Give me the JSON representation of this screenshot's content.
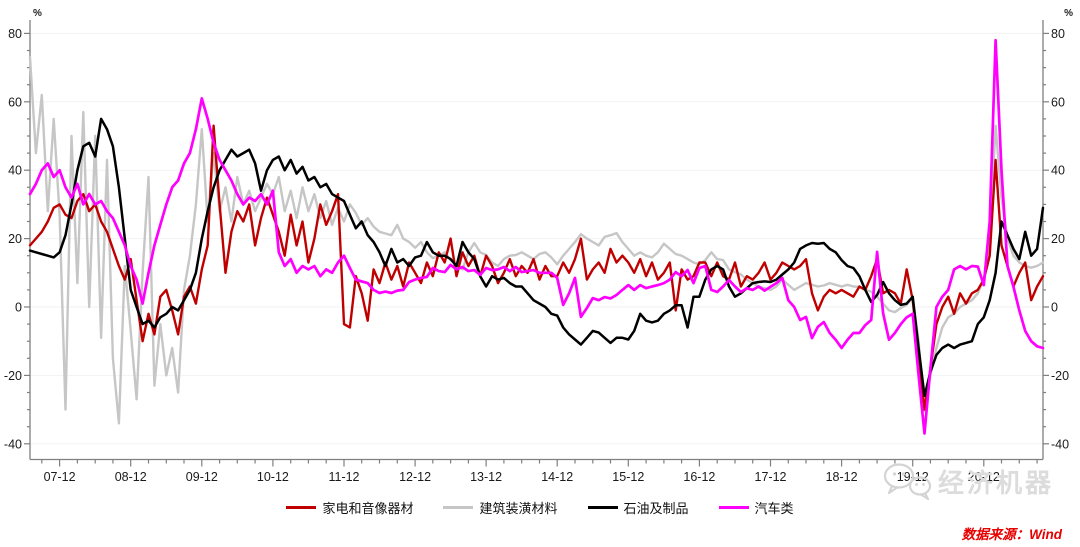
{
  "header": {
    "y_unit_left": "%",
    "y_unit_right": "%"
  },
  "chart_data": {
    "type": "line",
    "x_start": "2007-07",
    "x_end": "2021-10",
    "x_frequency": "monthly",
    "x_tick_labels": [
      "07-12",
      "08-12",
      "09-12",
      "10-12",
      "11-12",
      "12-12",
      "13-12",
      "14-12",
      "15-12",
      "16-12",
      "17-12",
      "18-12",
      "19-12",
      "20-12"
    ],
    "x_tick_indices": [
      5,
      17,
      29,
      41,
      53,
      65,
      77,
      89,
      101,
      113,
      125,
      137,
      149,
      161
    ],
    "ylim": [
      -40,
      80
    ],
    "y_ticks": [
      -40,
      -20,
      0,
      20,
      40,
      60,
      80
    ],
    "y_minor_step": 5,
    "grid": "faint-horizontal",
    "legend_position": "bottom-center",
    "series": [
      {
        "id": "appliances",
        "name": "家电和音像器材",
        "color": "#C00000",
        "width": 2.4,
        "values": [
          18,
          20,
          22,
          25,
          29,
          30,
          27,
          26,
          31,
          33,
          28,
          30,
          25,
          22,
          17,
          12,
          8,
          14,
          2,
          -10,
          -2,
          -8,
          3,
          5,
          -1,
          -8,
          3,
          6,
          1,
          11,
          18,
          53,
          30,
          10,
          22,
          28,
          25,
          30,
          18,
          26,
          32,
          27,
          22,
          15,
          27,
          18,
          25,
          13,
          20,
          30,
          24,
          28,
          33,
          -5,
          -6,
          9,
          4,
          -4,
          11,
          7,
          13,
          8,
          12,
          6,
          13,
          10,
          7,
          13,
          9,
          16,
          13,
          20,
          9,
          16,
          12,
          15,
          9,
          15,
          12,
          7,
          10,
          14,
          9,
          12,
          10,
          14,
          8,
          12,
          9,
          9,
          13,
          10,
          14,
          20,
          8,
          11,
          13,
          10,
          17,
          13,
          15,
          13,
          10,
          14,
          9,
          13,
          8,
          10,
          13,
          -1,
          11,
          8,
          9,
          13,
          13,
          9,
          13,
          9,
          8,
          13,
          6,
          9,
          8,
          10,
          13,
          8,
          10,
          13,
          12,
          11,
          12,
          14,
          4,
          -1,
          3,
          5,
          4,
          5,
          4,
          3,
          6,
          5,
          9,
          14,
          4,
          5,
          4,
          1,
          11,
          2,
          -14,
          -30,
          -18,
          -5,
          0,
          3,
          -2,
          4,
          1,
          4,
          5,
          8,
          15,
          43,
          18,
          12,
          6,
          10,
          13,
          2,
          6,
          9
        ]
      },
      {
        "id": "building-materials",
        "name": "建筑装潢材料",
        "color": "#C6C6C6",
        "width": 2.4,
        "values": [
          73,
          45,
          62,
          28,
          55,
          27,
          -30,
          50,
          7,
          57,
          0,
          50,
          -9,
          43,
          -15,
          -34,
          12,
          -7,
          -27,
          10,
          38,
          -23,
          -5,
          -20,
          -12,
          -25,
          5,
          15,
          30,
          52,
          25,
          45,
          28,
          35,
          25,
          38,
          30,
          34,
          28,
          32,
          36,
          33,
          38,
          28,
          34,
          26,
          35,
          28,
          33,
          26,
          31,
          24,
          29,
          25,
          30,
          27.5,
          24,
          26,
          23.5,
          22,
          21.5,
          21,
          24,
          20,
          19,
          17.3,
          19,
          16,
          14.3,
          15,
          16,
          13.7,
          12.3,
          11,
          16,
          18.7,
          16,
          15.2,
          13,
          12,
          14,
          15,
          15.2,
          16,
          15,
          14,
          15.5,
          16,
          14.5,
          12.5,
          15,
          17,
          19,
          21.3,
          20,
          19,
          18,
          20.5,
          21,
          21.6,
          19,
          17,
          15,
          16,
          15,
          14.5,
          16,
          18.5,
          17,
          15.5,
          15,
          14,
          13,
          12.5,
          13.7,
          16,
          14,
          13.7,
          11,
          10.2,
          9.5,
          8,
          7,
          6,
          5.5,
          5,
          6,
          8,
          6.5,
          5,
          6,
          7,
          6.5,
          6,
          6.3,
          7,
          6.5,
          6,
          6.5,
          6,
          5.9,
          5,
          4.5,
          3,
          1,
          -1,
          -1.5,
          -0.3,
          0.6,
          2.8,
          -10,
          -30.5,
          -20,
          -12,
          -6,
          -3,
          -2,
          0,
          1,
          2,
          4,
          8,
          20,
          53,
          32,
          20,
          15,
          13,
          12,
          11.5,
          12,
          13
        ]
      },
      {
        "id": "petroleum",
        "name": "石油及制品",
        "color": "#000000",
        "width": 2.5,
        "values": [
          16.5,
          16,
          15.5,
          15,
          14.5,
          16,
          21,
          30,
          40,
          47,
          48,
          44,
          55,
          52,
          47,
          35,
          20,
          5,
          0,
          -5,
          -4,
          -6,
          -3,
          -2,
          0,
          -1,
          2,
          5,
          10,
          20,
          28,
          35,
          40,
          43,
          46,
          44,
          45,
          46,
          42,
          34,
          40,
          43,
          44,
          40,
          43,
          39,
          41,
          37,
          38,
          35,
          36,
          33,
          32,
          31,
          27,
          23,
          25,
          21,
          19,
          16,
          12,
          17,
          13,
          14,
          12,
          14.5,
          15,
          19,
          16,
          15,
          15,
          14,
          12,
          19,
          16,
          14,
          9,
          6,
          9,
          8,
          8.5,
          7,
          6,
          6,
          4,
          2,
          1,
          0,
          -2,
          -2.5,
          -6,
          -8,
          -9.5,
          -11,
          -9,
          -7,
          -7.5,
          -9,
          -10.5,
          -9,
          -9,
          -9.5,
          -7,
          -2,
          -4,
          -4.5,
          -4,
          -2,
          -1,
          0.5,
          0.5,
          -6,
          3,
          3,
          8,
          11,
          12,
          11,
          6,
          3,
          4,
          5.5,
          7,
          7.3,
          7.5,
          7.3,
          8,
          9.5,
          11,
          13,
          17,
          18,
          18.7,
          18.5,
          18.7,
          17,
          16,
          13.7,
          12,
          11.4,
          9,
          5,
          1.5,
          3.5,
          7.3,
          4,
          2,
          0.6,
          1,
          3,
          -12,
          -26,
          -19,
          -14,
          -12,
          -11,
          -12,
          -11,
          -10.5,
          -10,
          -5,
          -3,
          2,
          10,
          25,
          21,
          17,
          14,
          22,
          15,
          17,
          29
        ]
      },
      {
        "id": "autos",
        "name": "汽车类",
        "color": "#FF00FF",
        "width": 2.7,
        "values": [
          33,
          36,
          40,
          42,
          38,
          40,
          35,
          32,
          36,
          30,
          33,
          30,
          31,
          28,
          26,
          22,
          18,
          12,
          8,
          1,
          10,
          18,
          24,
          30,
          35,
          37,
          42,
          45,
          52,
          61,
          55,
          48,
          43,
          40,
          37,
          33,
          30,
          32,
          31,
          33,
          30,
          34,
          16,
          12,
          14,
          10,
          12,
          11,
          12,
          9,
          11,
          10,
          13,
          15,
          11.4,
          8,
          7.5,
          7,
          5,
          4.1,
          4.5,
          4.1,
          4.8,
          5,
          7.3,
          8,
          8.5,
          8.8,
          11.4,
          10.5,
          10.2,
          12.3,
          11,
          11.7,
          10.5,
          10.8,
          9.4,
          11.4,
          10.8,
          11,
          11.7,
          10.5,
          11.7,
          10.2,
          10.5,
          10.8,
          10,
          10,
          10,
          8.5,
          0.6,
          4,
          8.5,
          -2.9,
          -0.3,
          2.6,
          2,
          2.9,
          2.5,
          3.5,
          5,
          6.4,
          5,
          6.4,
          5.5,
          6,
          6.4,
          7,
          8,
          10.2,
          9,
          10.8,
          7,
          11.4,
          12,
          5,
          4.4,
          6,
          7.9,
          6,
          4.4,
          5.5,
          5,
          6,
          4.8,
          5.9,
          7,
          8.5,
          2,
          0,
          -3.8,
          -2.9,
          -9.1,
          -5.8,
          -4.4,
          -7.6,
          -9.6,
          -12,
          -9.6,
          -7.6,
          -7.6,
          -5.3,
          -3.8,
          16.1,
          -1.8,
          -9.6,
          -7.6,
          -5,
          -3,
          -2,
          -20,
          -37,
          -18,
          0,
          3,
          5,
          11,
          12,
          11,
          12,
          11.8,
          6.4,
          25,
          78,
          40,
          12,
          6,
          -1,
          -7,
          -10,
          -11.5,
          -12
        ]
      }
    ]
  },
  "footer": {
    "source": "数据来源：Wind",
    "watermark": "经济机器"
  }
}
